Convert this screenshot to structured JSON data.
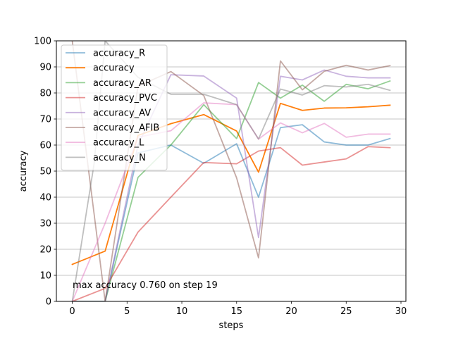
{
  "chart_data": {
    "type": "line",
    "xlabel": "steps",
    "ylabel": "accuracy",
    "xlim": [
      -1.45,
      30.45
    ],
    "ylim": [
      0,
      100
    ],
    "xticks": [
      0,
      5,
      10,
      15,
      20,
      25,
      30
    ],
    "yticks": [
      0,
      10,
      20,
      30,
      40,
      50,
      60,
      70,
      80,
      90,
      100
    ],
    "grid": "horizontal",
    "legend": "upper-left",
    "annotation": "max accuracy 0.760 on step 19",
    "series": [
      {
        "name": "accuracy_R",
        "color": "#1f77b4",
        "alpha": 0.5,
        "x": [
          0,
          3,
          6,
          9,
          12,
          15,
          17,
          19,
          21,
          23,
          25,
          27,
          29
        ],
        "y": [
          0,
          0,
          57,
          60,
          53,
          60.5,
          40,
          66.7,
          67.8,
          61.2,
          60,
          60,
          62.5
        ]
      },
      {
        "name": "accuracy",
        "color": "#ff7f0e",
        "alpha": 1.0,
        "x": [
          0,
          3,
          6,
          9,
          12,
          15,
          17,
          19,
          21,
          23,
          25,
          27,
          29
        ],
        "y": [
          14.2,
          19.3,
          63.7,
          68.2,
          71.7,
          65.4,
          49.6,
          76.0,
          73.3,
          74.2,
          74.3,
          74.7,
          75.3
        ]
      },
      {
        "name": "accuracy_AR",
        "color": "#2ca02c",
        "alpha": 0.5,
        "x": [
          0,
          3,
          6,
          9,
          12,
          15,
          17,
          19,
          21,
          23,
          25,
          27,
          29
        ],
        "y": [
          0,
          0,
          47.6,
          60,
          75.5,
          62.5,
          84,
          78,
          83,
          76.8,
          83.3,
          81.6,
          84.6
        ]
      },
      {
        "name": "accuracy_PVC",
        "color": "#d62728",
        "alpha": 0.5,
        "x": [
          0,
          3,
          6,
          9,
          12,
          15,
          17,
          19,
          21,
          23,
          25,
          27,
          29
        ],
        "y": [
          0,
          5,
          26.6,
          40,
          53.3,
          52.8,
          57.7,
          59,
          52.3,
          53.5,
          54.7,
          59.4,
          59
        ]
      },
      {
        "name": "accuracy_AV",
        "color": "#9467bd",
        "alpha": 0.5,
        "x": [
          0,
          3,
          6,
          9,
          12,
          15,
          17,
          19,
          21,
          23,
          25,
          27,
          29
        ],
        "y": [
          0,
          0,
          60,
          87,
          86.5,
          78,
          24.5,
          86.4,
          85,
          88.8,
          86.4,
          85.8,
          85.8
        ]
      },
      {
        "name": "accuracy_AFIB",
        "color": "#8c564b",
        "alpha": 0.5,
        "x": [
          0,
          3,
          6,
          9,
          12,
          15,
          17,
          19,
          21,
          23,
          25,
          27,
          29
        ],
        "y": [
          100,
          0,
          82.6,
          88.2,
          79,
          47.4,
          16.7,
          92.3,
          81.2,
          88.3,
          90.6,
          88.8,
          90.5
        ]
      },
      {
        "name": "accuracy_L",
        "color": "#e377c2",
        "alpha": 0.5,
        "x": [
          0,
          3,
          6,
          9,
          12,
          15,
          17,
          19,
          21,
          23,
          25,
          27,
          29
        ],
        "y": [
          0,
          30,
          63,
          65.5,
          76.2,
          75.5,
          62.3,
          68.5,
          64.7,
          68.3,
          63,
          64.2,
          64.2
        ]
      },
      {
        "name": "accuracy_N",
        "color": "#7f7f7f",
        "alpha": 0.5,
        "x": [
          0,
          2,
          3,
          6,
          9,
          12,
          15,
          17,
          19,
          21,
          23,
          25,
          27,
          29
        ],
        "y": [
          0,
          53,
          100,
          86,
          79.5,
          79.5,
          75.5,
          62.3,
          81.5,
          79.2,
          82.8,
          82.3,
          83.3,
          81
        ]
      }
    ]
  }
}
